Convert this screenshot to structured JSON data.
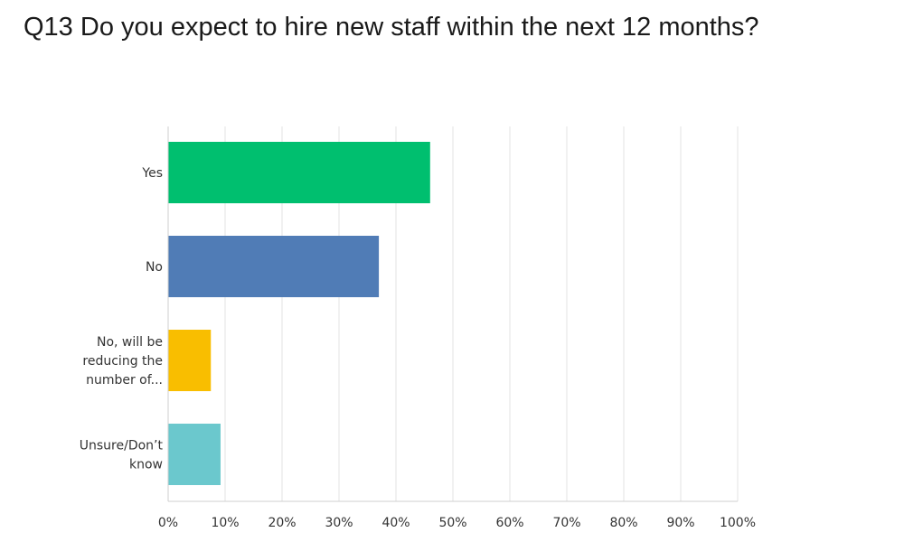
{
  "page": {
    "title": "Q13 Do you expect to hire new staff within the next 12 months?"
  },
  "chart_data": {
    "type": "bar",
    "orientation": "horizontal",
    "title": "Q13 Do you expect to hire new staff within the next 12 months?",
    "categories": [
      [
        "Yes"
      ],
      [
        "No"
      ],
      [
        "No, will be",
        "reducing the",
        "number of..."
      ],
      [
        "Unsure/Don’t",
        "know"
      ]
    ],
    "values": [
      46,
      37,
      7.5,
      9.2
    ],
    "colors": [
      "#00bf6f",
      "#507cb6",
      "#f9be00",
      "#6bc8cd"
    ],
    "xlim": [
      0,
      100
    ],
    "x_ticks": [
      0,
      10,
      20,
      30,
      40,
      50,
      60,
      70,
      80,
      90,
      100
    ],
    "tick_format": "percent",
    "grid": true,
    "legend": "none"
  }
}
